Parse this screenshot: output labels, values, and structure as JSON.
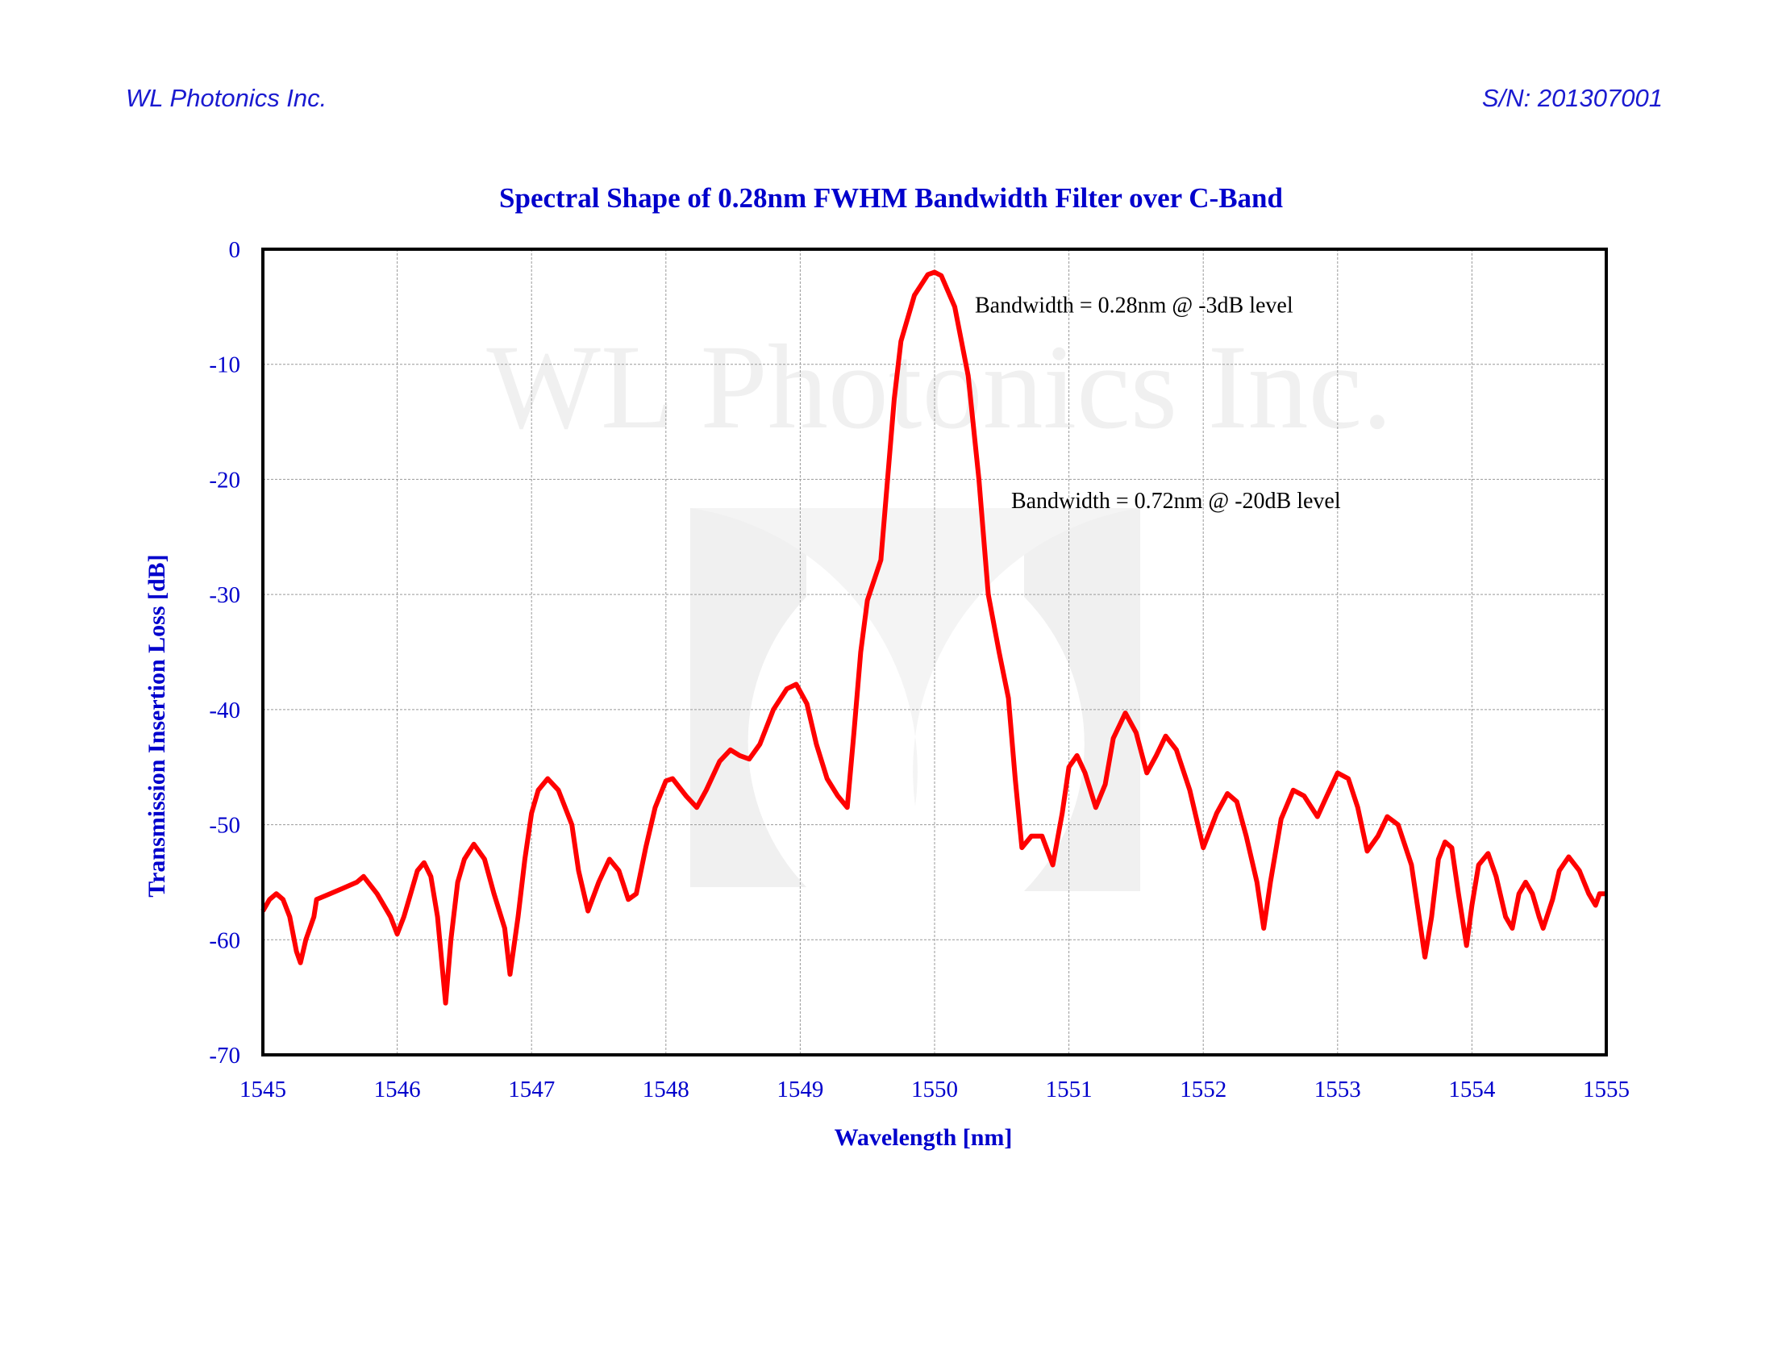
{
  "header": {
    "company": "WL Photonics Inc.",
    "serial": "S/N: 201307001"
  },
  "watermark": "WL Photonics Inc.",
  "chart_data": {
    "type": "line",
    "title": "Spectral Shape of 0.28nm FWHM Bandwidth Filter over C-Band",
    "xlabel": "Wavelength [nm]",
    "ylabel": "Transmission Insertion Loss [dB]",
    "xlim": [
      1545,
      1555
    ],
    "ylim": [
      -70,
      0
    ],
    "xticks": [
      1545,
      1546,
      1547,
      1548,
      1549,
      1550,
      1551,
      1552,
      1553,
      1554,
      1555
    ],
    "yticks": [
      0,
      -10,
      -20,
      -30,
      -40,
      -50,
      -60,
      -70
    ],
    "grid": true,
    "line_color": "#ff0000",
    "annotations": [
      {
        "text": "Bandwidth = 0.28nm @ -3dB level",
        "x": 1550.3,
        "y": -5.5
      },
      {
        "text": "Bandwidth = 0.72nm @ -20dB level",
        "x": 1550.57,
        "y": -22.5
      }
    ],
    "series": [
      {
        "x": [
          1545.0,
          1545.05,
          1545.1,
          1545.15,
          1545.2,
          1545.25,
          1545.28,
          1545.32,
          1545.38,
          1545.4,
          1545.5,
          1545.6,
          1545.7,
          1545.75,
          1545.85,
          1545.95,
          1546.0,
          1546.05,
          1546.1,
          1546.15,
          1546.2,
          1546.25,
          1546.3,
          1546.36,
          1546.4,
          1546.45,
          1546.5,
          1546.57,
          1546.65,
          1546.72,
          1546.8,
          1546.84,
          1546.9,
          1546.95,
          1547.0,
          1547.05,
          1547.12,
          1547.2,
          1547.3,
          1547.35,
          1547.42,
          1547.5,
          1547.58,
          1547.65,
          1547.72,
          1547.78,
          1547.85,
          1547.92,
          1548.0,
          1548.05,
          1548.15,
          1548.23,
          1548.3,
          1548.4,
          1548.48,
          1548.55,
          1548.62,
          1548.7,
          1548.8,
          1548.9,
          1548.97,
          1549.05,
          1549.12,
          1549.2,
          1549.28,
          1549.35,
          1549.4,
          1549.45,
          1549.5,
          1549.6,
          1549.65,
          1549.7,
          1549.75,
          1549.85,
          1549.95,
          1550.0,
          1550.05,
          1550.15,
          1550.25,
          1550.33,
          1550.4,
          1550.48,
          1550.55,
          1550.6,
          1550.65,
          1550.72,
          1550.8,
          1550.88,
          1550.95,
          1551.0,
          1551.06,
          1551.12,
          1551.2,
          1551.27,
          1551.33,
          1551.42,
          1551.5,
          1551.58,
          1551.65,
          1551.72,
          1551.8,
          1551.9,
          1552.0,
          1552.1,
          1552.18,
          1552.25,
          1552.32,
          1552.4,
          1552.45,
          1552.5,
          1552.58,
          1552.67,
          1552.75,
          1552.85,
          1552.92,
          1553.0,
          1553.08,
          1553.15,
          1553.22,
          1553.3,
          1553.37,
          1553.45,
          1553.55,
          1553.6,
          1553.65,
          1553.7,
          1553.75,
          1553.8,
          1553.85,
          1553.9,
          1553.96,
          1554.0,
          1554.05,
          1554.12,
          1554.18,
          1554.25,
          1554.3,
          1554.35,
          1554.4,
          1554.45,
          1554.5,
          1554.53,
          1554.6,
          1554.65,
          1554.72,
          1554.8,
          1554.87,
          1554.92,
          1554.95,
          1555.0
        ],
        "y": [
          -57.5,
          -56.5,
          -56,
          -56.5,
          -58,
          -61,
          -62,
          -60,
          -58,
          -56.5,
          -56,
          -55.5,
          -55,
          -54.5,
          -56,
          -58,
          -59.5,
          -58,
          -56,
          -54,
          -53.3,
          -54.5,
          -58,
          -65.5,
          -60,
          -55,
          -53,
          -51.7,
          -53,
          -56,
          -59,
          -63,
          -58,
          -53,
          -49,
          -47,
          -46,
          -47,
          -50,
          -54,
          -57.5,
          -55,
          -53,
          -54,
          -56.5,
          -56,
          -52,
          -48.5,
          -46.2,
          -46,
          -47.5,
          -48.5,
          -47,
          -44.5,
          -43.5,
          -44,
          -44.3,
          -43,
          -40,
          -38.2,
          -37.8,
          -39.5,
          -43,
          -46,
          -47.5,
          -48.5,
          -42,
          -35,
          -30.5,
          -27,
          -20,
          -13,
          -8,
          -4,
          -2.2,
          -2,
          -2.3,
          -5,
          -11,
          -20,
          -30,
          -35,
          -39,
          -46,
          -52,
          -51,
          -51,
          -53.5,
          -49,
          -45,
          -44,
          -45.5,
          -48.5,
          -46.5,
          -42.5,
          -40.3,
          -42,
          -45.5,
          -44,
          -42.3,
          -43.5,
          -47,
          -52,
          -49,
          -47.3,
          -48,
          -51,
          -55,
          -59,
          -55,
          -49.5,
          -47,
          -47.5,
          -49.3,
          -47.5,
          -45.5,
          -46,
          -48.5,
          -52.3,
          -51,
          -49.3,
          -50,
          -53.5,
          -57.5,
          -61.5,
          -58,
          -53,
          -51.5,
          -52,
          -56,
          -60.5,
          -57,
          -53.5,
          -52.5,
          -54.5,
          -58,
          -59,
          -56,
          -55,
          -56,
          -58,
          -59,
          -56.5,
          -54,
          -52.8,
          -54,
          -56,
          -57,
          -56,
          -56
        ]
      }
    ]
  }
}
